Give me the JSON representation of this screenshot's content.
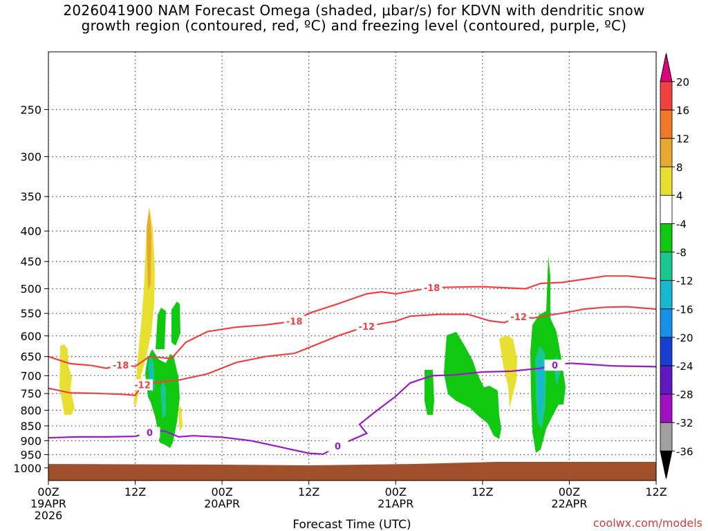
{
  "title_line1": "2026041900 NAM Forecast Omega (shaded, μbar/s) for KDVN with dendritic snow",
  "title_line2": "growth region (contoured, red, ºC) and freezing level (contoured, purple, ºC)",
  "credit": "coolwx.com/models",
  "chart_data": {
    "type": "time-height",
    "xlabel": "Forecast Time (UTC)",
    "y_scale": "log-pressure",
    "ylim": [
      1050,
      200
    ],
    "y_ticks": [
      250,
      300,
      350,
      400,
      450,
      500,
      550,
      600,
      650,
      700,
      750,
      800,
      850,
      900,
      950,
      1000
    ],
    "xlim_hours": [
      0,
      84
    ],
    "x_ticks": [
      {
        "hour": 0,
        "lines": [
          "00Z",
          "19APR",
          "2026"
        ]
      },
      {
        "hour": 12,
        "lines": [
          "12Z"
        ]
      },
      {
        "hour": 24,
        "lines": [
          "00Z",
          "20APR"
        ]
      },
      {
        "hour": 36,
        "lines": [
          "12Z"
        ]
      },
      {
        "hour": 48,
        "lines": [
          "00Z",
          "21APR"
        ]
      },
      {
        "hour": 60,
        "lines": [
          "12Z"
        ]
      },
      {
        "hour": 72,
        "lines": [
          "00Z",
          "22APR"
        ]
      },
      {
        "hour": 84,
        "lines": [
          "12Z"
        ]
      }
    ],
    "grid": true,
    "colorbar": {
      "unit": "μbar/s",
      "levels": [
        "20",
        "16",
        "12",
        "8",
        "4",
        "-4",
        "-8",
        "-12",
        "-16",
        "-20",
        "-24",
        "-28",
        "-32",
        "-36"
      ],
      "colors": [
        "#e0007a",
        "#f04040",
        "#f07828",
        "#e8a830",
        "#e8e030",
        "#ffffff",
        "#10c810",
        "#18c890",
        "#18b8d0",
        "#1890e8",
        "#1840d0",
        "#6018c0",
        "#a010c0",
        "#a0a0a0",
        "#000000"
      ]
    },
    "terrain": {
      "color": "#a0502a",
      "surface_pressure_hpa": [
        {
          "h": 0,
          "p": 985
        },
        {
          "h": 22,
          "p": 987
        },
        {
          "h": 36,
          "p": 990
        },
        {
          "h": 50,
          "p": 985
        },
        {
          "h": 62,
          "p": 977
        },
        {
          "h": 84,
          "p": 977
        }
      ]
    },
    "contours": [
      {
        "label": "-18",
        "color": "#f04040",
        "points": [
          [
            0,
            650
          ],
          [
            3,
            668
          ],
          [
            6,
            673
          ],
          [
            8,
            680
          ],
          [
            10,
            672
          ],
          [
            12,
            675
          ],
          [
            14,
            650
          ],
          [
            17,
            655
          ],
          [
            19,
            615
          ],
          [
            22,
            590
          ],
          [
            26,
            580
          ],
          [
            30,
            575
          ],
          [
            34,
            567
          ],
          [
            36,
            550
          ],
          [
            40,
            530
          ],
          [
            44,
            510
          ],
          [
            46,
            506
          ],
          [
            48,
            510
          ],
          [
            50,
            505
          ],
          [
            53,
            498
          ],
          [
            56,
            497
          ],
          [
            60,
            496
          ],
          [
            63,
            498
          ],
          [
            66,
            500
          ],
          [
            68,
            490
          ],
          [
            71,
            488
          ],
          [
            74,
            482
          ],
          [
            77,
            476
          ],
          [
            80,
            476
          ],
          [
            84,
            481
          ]
        ]
      },
      {
        "label": "-12",
        "color": "#f04040",
        "points": [
          [
            0,
            735
          ],
          [
            3,
            748
          ],
          [
            6,
            749
          ],
          [
            10,
            752
          ],
          [
            12,
            755
          ],
          [
            13,
            725
          ],
          [
            15,
            718
          ],
          [
            18,
            712
          ],
          [
            22,
            695
          ],
          [
            26,
            665
          ],
          [
            30,
            650
          ],
          [
            34,
            642
          ],
          [
            36,
            628
          ],
          [
            40,
            600
          ],
          [
            44,
            578
          ],
          [
            48,
            567
          ],
          [
            50,
            556
          ],
          [
            54,
            552
          ],
          [
            58,
            552
          ],
          [
            61,
            566
          ],
          [
            63,
            570
          ],
          [
            65,
            557
          ],
          [
            67,
            560
          ],
          [
            70,
            552
          ],
          [
            72,
            547
          ],
          [
            74,
            541
          ],
          [
            77,
            537
          ],
          [
            80,
            536
          ],
          [
            84,
            541
          ]
        ]
      },
      {
        "label": "0",
        "color": "#9a18c8",
        "points": [
          [
            0,
            890
          ],
          [
            4,
            887
          ],
          [
            8,
            887
          ],
          [
            12,
            885
          ],
          [
            14,
            872
          ],
          [
            16,
            866
          ],
          [
            18,
            887
          ],
          [
            20,
            883
          ],
          [
            24,
            888
          ],
          [
            28,
            900
          ],
          [
            32,
            922
          ],
          [
            36,
            945
          ],
          [
            38,
            948
          ],
          [
            40,
            918
          ],
          [
            44,
            875
          ],
          [
            43,
            845
          ],
          [
            45,
            808
          ],
          [
            48,
            758
          ],
          [
            50,
            720
          ],
          [
            53,
            700
          ],
          [
            56,
            698
          ],
          [
            60,
            690
          ],
          [
            64,
            688
          ],
          [
            68,
            680
          ],
          [
            70,
            672
          ],
          [
            72,
            667
          ],
          [
            74,
            669
          ],
          [
            78,
            674
          ],
          [
            84,
            676
          ]
        ]
      }
    ]
  }
}
